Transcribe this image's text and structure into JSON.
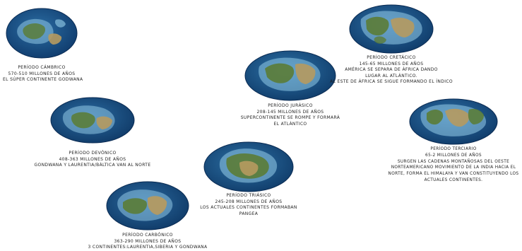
{
  "periods": [
    {
      "id": "cambrico",
      "title": "Período Cámbrico",
      "dates": "570-510 millones de años",
      "notes": [
        "El súper continente Godwana"
      ]
    },
    {
      "id": "devonico",
      "title": "Período Devónico",
      "dates": "408-363 millones de años",
      "notes": [
        "Gondwana y Laurentia/Báltica van al norte"
      ]
    },
    {
      "id": "carbonico",
      "title": "Período Carbónico",
      "dates": "363-290 millones de años",
      "notes": [
        "3 continentes:Laurentia,Siberia y Gondwana"
      ]
    },
    {
      "id": "triasico",
      "title": "Período Triásico",
      "dates": "245-208 millones de años",
      "notes": [
        "Los actuales continentes formaban",
        "Pangea"
      ]
    },
    {
      "id": "jurasico",
      "title": "Período Jurásico",
      "dates": "208-145 millones de años",
      "notes": [
        "Supercontinente se rompe y formará",
        "el Atlántico"
      ]
    },
    {
      "id": "cretacico",
      "title": "Período Cretácico",
      "dates": "145-65 millones de años",
      "notes": [
        "América se separa de África dando",
        "lugar al Atlántico.",
        "Al este de África se sigue formando el Índico"
      ]
    },
    {
      "id": "terciario",
      "title": "Período Terciario",
      "dates": "65-2 millones de años",
      "notes": [
        "Surgen las cadenas montañosas del oeste",
        "norteamericano movimiento de la India hacia el",
        "norte, forma el Himalaya y van constituyendo los",
        "actuales continentes."
      ]
    }
  ],
  "colors": {
    "ocean_deep": "#0d3768",
    "ocean_mid": "#1f5f94",
    "shelf": "#8fc7e4",
    "land_green": "#5b7d3a",
    "land_tan": "#b69a5f",
    "caption_text": "#1f1f1f"
  }
}
